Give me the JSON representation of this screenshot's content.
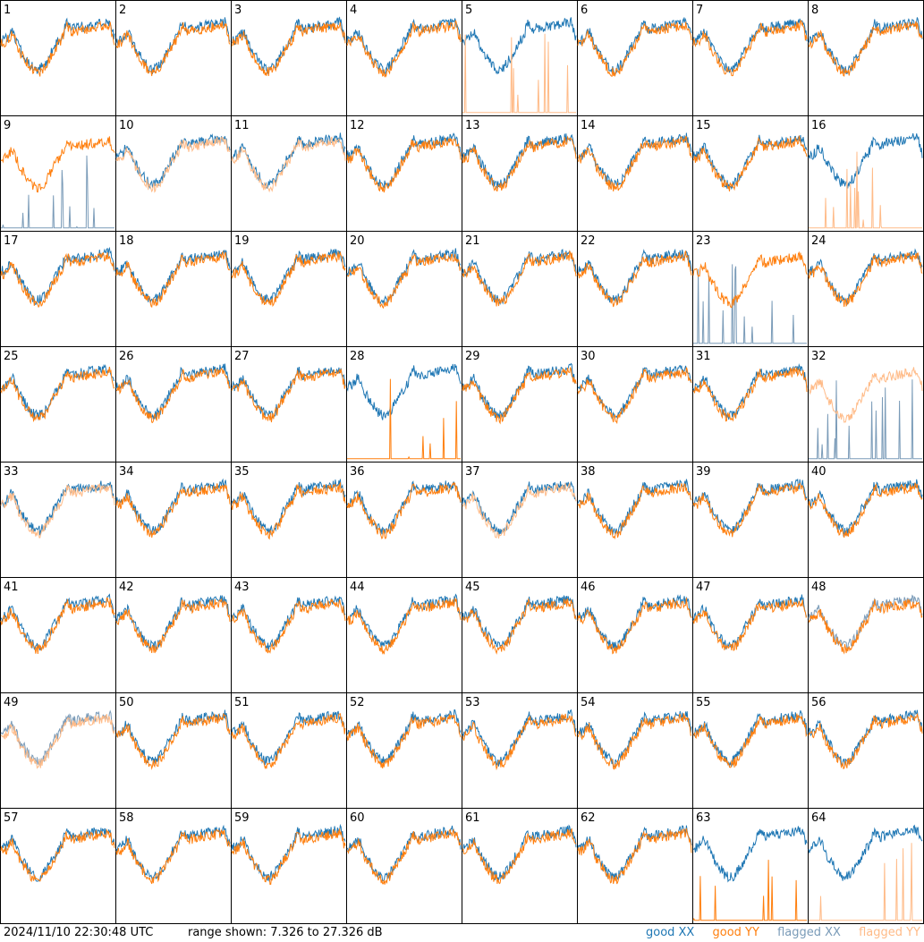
{
  "timestamp": "2024/11/10 22:30:48 UTC",
  "range_text": "range shown: 7.326 to 27.326 dB",
  "legend": {
    "good_xx": "good XX",
    "good_yy": "good YY",
    "flagged_xx": "flagged XX",
    "flagged_yy": "flagged YY"
  },
  "colors": {
    "good_xx": "#1f77b4",
    "good_yy": "#ff7f0e",
    "flagged_xx": "#7a9bb8",
    "flagged_yy": "#ffbb88"
  },
  "chart_data": {
    "type": "line",
    "grid": "8x8 small multiples",
    "ylim_db": [
      7.326,
      27.326
    ],
    "panels": [
      {
        "id": 1,
        "xx": "good",
        "yy": "good"
      },
      {
        "id": 2,
        "xx": "good",
        "yy": "good"
      },
      {
        "id": 3,
        "xx": "good",
        "yy": "good"
      },
      {
        "id": 4,
        "xx": "good",
        "yy": "good"
      },
      {
        "id": 5,
        "xx": "good",
        "yy": "flagged"
      },
      {
        "id": 6,
        "xx": "good",
        "yy": "good"
      },
      {
        "id": 7,
        "xx": "good",
        "yy": "good"
      },
      {
        "id": 8,
        "xx": "good",
        "yy": "good"
      },
      {
        "id": 9,
        "xx": "flagged",
        "yy": "good"
      },
      {
        "id": 10,
        "xx": "good",
        "yy": "flagged"
      },
      {
        "id": 11,
        "xx": "good",
        "yy": "flagged"
      },
      {
        "id": 12,
        "xx": "good",
        "yy": "good"
      },
      {
        "id": 13,
        "xx": "good",
        "yy": "good"
      },
      {
        "id": 14,
        "xx": "good",
        "yy": "good"
      },
      {
        "id": 15,
        "xx": "good",
        "yy": "good"
      },
      {
        "id": 16,
        "xx": "good",
        "yy": "flagged"
      },
      {
        "id": 17,
        "xx": "good",
        "yy": "good"
      },
      {
        "id": 18,
        "xx": "good",
        "yy": "good"
      },
      {
        "id": 19,
        "xx": "good",
        "yy": "good"
      },
      {
        "id": 20,
        "xx": "good",
        "yy": "good"
      },
      {
        "id": 21,
        "xx": "good",
        "yy": "good"
      },
      {
        "id": 22,
        "xx": "good",
        "yy": "good"
      },
      {
        "id": 23,
        "xx": "flagged",
        "yy": "good"
      },
      {
        "id": 24,
        "xx": "good",
        "yy": "good"
      },
      {
        "id": 25,
        "xx": "good",
        "yy": "good"
      },
      {
        "id": 26,
        "xx": "good",
        "yy": "good"
      },
      {
        "id": 27,
        "xx": "good",
        "yy": "good"
      },
      {
        "id": 28,
        "xx": "good",
        "yy": "good"
      },
      {
        "id": 29,
        "xx": "good",
        "yy": "good"
      },
      {
        "id": 30,
        "xx": "good",
        "yy": "good"
      },
      {
        "id": 31,
        "xx": "good",
        "yy": "good"
      },
      {
        "id": 32,
        "xx": "flagged",
        "yy": "flagged"
      },
      {
        "id": 33,
        "xx": "good",
        "yy": "flagged"
      },
      {
        "id": 34,
        "xx": "good",
        "yy": "good"
      },
      {
        "id": 35,
        "xx": "good",
        "yy": "good"
      },
      {
        "id": 36,
        "xx": "good",
        "yy": "good"
      },
      {
        "id": 37,
        "xx": "good",
        "yy": "flagged"
      },
      {
        "id": 38,
        "xx": "good",
        "yy": "good"
      },
      {
        "id": 39,
        "xx": "good",
        "yy": "good"
      },
      {
        "id": 40,
        "xx": "good",
        "yy": "good"
      },
      {
        "id": 41,
        "xx": "good",
        "yy": "good"
      },
      {
        "id": 42,
        "xx": "good",
        "yy": "good"
      },
      {
        "id": 43,
        "xx": "good",
        "yy": "good"
      },
      {
        "id": 44,
        "xx": "good",
        "yy": "good"
      },
      {
        "id": 45,
        "xx": "good",
        "yy": "good"
      },
      {
        "id": 46,
        "xx": "good",
        "yy": "good"
      },
      {
        "id": 47,
        "xx": "good",
        "yy": "good"
      },
      {
        "id": 48,
        "xx": "flagged",
        "yy": "good"
      },
      {
        "id": 49,
        "xx": "flagged",
        "yy": "flagged"
      },
      {
        "id": 50,
        "xx": "good",
        "yy": "good"
      },
      {
        "id": 51,
        "xx": "good",
        "yy": "good"
      },
      {
        "id": 52,
        "xx": "good",
        "yy": "good"
      },
      {
        "id": 53,
        "xx": "good",
        "yy": "good"
      },
      {
        "id": 54,
        "xx": "good",
        "yy": "good"
      },
      {
        "id": 55,
        "xx": "good",
        "yy": "good"
      },
      {
        "id": 56,
        "xx": "good",
        "yy": "good"
      },
      {
        "id": 57,
        "xx": "good",
        "yy": "good"
      },
      {
        "id": 58,
        "xx": "good",
        "yy": "good"
      },
      {
        "id": 59,
        "xx": "good",
        "yy": "good"
      },
      {
        "id": 60,
        "xx": "good",
        "yy": "good"
      },
      {
        "id": 61,
        "xx": "good",
        "yy": "good"
      },
      {
        "id": 62,
        "xx": "good",
        "yy": "good"
      },
      {
        "id": 63,
        "xx": "good",
        "yy": "good"
      },
      {
        "id": 64,
        "xx": "good",
        "yy": "flagged"
      }
    ]
  }
}
